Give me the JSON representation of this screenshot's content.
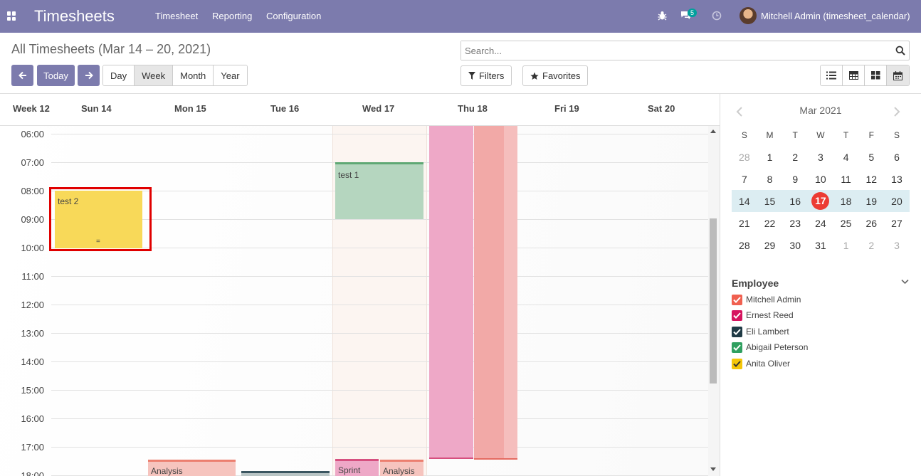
{
  "navbar": {
    "app_title": "Timesheets",
    "menu": [
      "Timesheet",
      "Reporting",
      "Configuration"
    ],
    "message_count": "5",
    "user_name": "Mitchell Admin (timesheet_calendar)"
  },
  "control_panel": {
    "breadcrumb": "All Timesheets (Mar 14 – 20, 2021)",
    "today_label": "Today",
    "scales": [
      "Day",
      "Week",
      "Month",
      "Year"
    ],
    "active_scale": "Week",
    "search_placeholder": "Search...",
    "filters_label": "Filters",
    "favorites_label": "Favorites"
  },
  "calendar": {
    "week_label": "Week 12",
    "days": [
      "Sun 14",
      "Mon 15",
      "Tue 16",
      "Wed 17",
      "Thu 18",
      "Fri 19",
      "Sat 20"
    ],
    "hours": [
      "06:00",
      "07:00",
      "08:00",
      "09:00",
      "10:00",
      "11:00",
      "12:00",
      "13:00",
      "14:00",
      "15:00",
      "16:00",
      "17:00",
      "18:00"
    ],
    "events": [
      {
        "title": "test 2",
        "day": "Sun 14",
        "start": "08:00",
        "end": "10:00",
        "color": "#f8d959"
      },
      {
        "title": "test 1",
        "day": "Wed 17",
        "start": "07:00",
        "end": "09:00",
        "color": "#b5d6bf"
      },
      {
        "title": "",
        "day": "Thu 18",
        "start": "06:00",
        "end": "17:20",
        "color": "#eea8c7"
      },
      {
        "title": "",
        "day": "Thu 18",
        "start": "06:00",
        "end": "17:20",
        "color": "#f2a9a7"
      },
      {
        "title": "Analysis",
        "day": "Mon 15",
        "start": "17:30",
        "end": "18:00",
        "color": "#f6c4be"
      },
      {
        "title": "",
        "day": "Tue 16",
        "start": "17:50",
        "end": "18:00",
        "color": "#b9c5c5"
      },
      {
        "title": "Sprint",
        "day": "Wed 17",
        "start": "17:25",
        "end": "18:00",
        "color": "#eea8c7"
      },
      {
        "title": "Analysis",
        "day": "Wed 17",
        "start": "17:25",
        "end": "18:00",
        "color": "#f6c4be"
      }
    ],
    "event_resize_handle": "="
  },
  "mini_calendar": {
    "title": "Mar 2021",
    "weekdays": [
      "S",
      "M",
      "T",
      "W",
      "T",
      "F",
      "S"
    ],
    "weeks": [
      [
        "28",
        "1",
        "2",
        "3",
        "4",
        "5",
        "6"
      ],
      [
        "7",
        "8",
        "9",
        "10",
        "11",
        "12",
        "13"
      ],
      [
        "14",
        "15",
        "16",
        "17",
        "18",
        "19",
        "20"
      ],
      [
        "21",
        "22",
        "23",
        "24",
        "25",
        "26",
        "27"
      ],
      [
        "28",
        "29",
        "30",
        "31",
        "1",
        "2",
        "3"
      ]
    ],
    "today": "17"
  },
  "employee_filter": {
    "title": "Employee",
    "items": [
      {
        "name": "Mitchell Admin",
        "color": "#f06050"
      },
      {
        "name": "Ernest Reed",
        "color": "#d6145f"
      },
      {
        "name": "Eli Lambert",
        "color": "#1f3a45"
      },
      {
        "name": "Abigail Peterson",
        "color": "#30a060"
      },
      {
        "name": "Anita Oliver",
        "color": "#f4c609"
      }
    ]
  },
  "colors": {
    "navbar": "#7c7bad",
    "highlight_box": "#e00000",
    "today_marker": "#ec3b33"
  }
}
